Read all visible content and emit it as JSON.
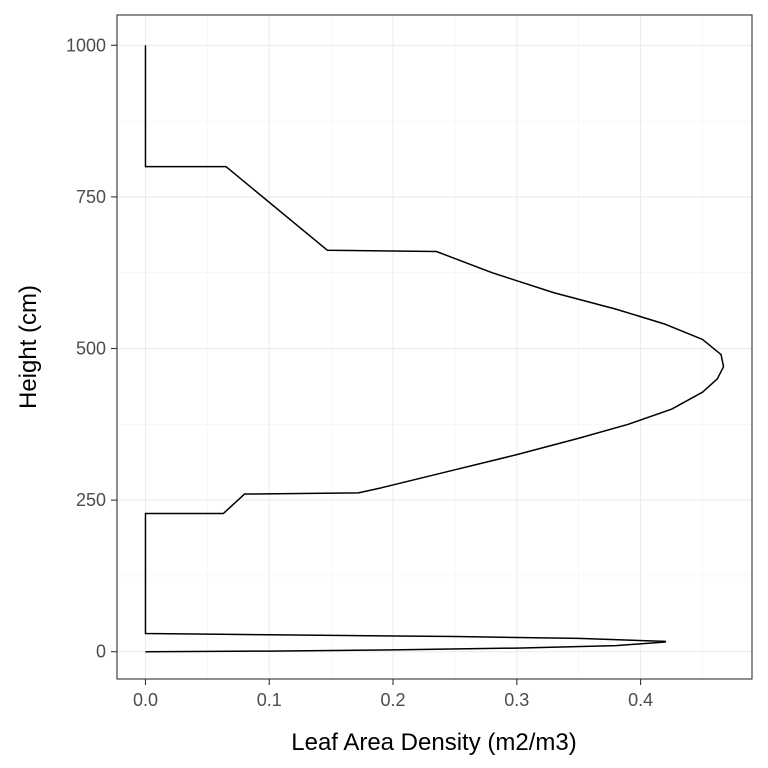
{
  "chart_data": {
    "type": "line",
    "title": "",
    "xlabel": "Leaf Area Density (m2/m3)",
    "ylabel": "Height (cm)",
    "xlim": [
      -0.023,
      0.49
    ],
    "ylim": [
      -45,
      1050
    ],
    "x_ticks": [
      0.0,
      0.1,
      0.2,
      0.3,
      0.4
    ],
    "x_tick_labels": [
      "0.0",
      "0.1",
      "0.2",
      "0.3",
      "0.4"
    ],
    "y_ticks": [
      0,
      250,
      500,
      750,
      1000
    ],
    "y_tick_labels": [
      "0",
      "250",
      "500",
      "750",
      "1000"
    ],
    "grid": true,
    "legend": "none",
    "series_color": "#000000",
    "series": [
      {
        "points": [
          [
            0.0,
            0
          ],
          [
            0.1,
            1
          ],
          [
            0.2,
            3
          ],
          [
            0.3,
            6
          ],
          [
            0.38,
            10
          ],
          [
            0.42,
            16
          ],
          [
            0.42,
            17
          ],
          [
            0.35,
            22
          ],
          [
            0.25,
            25
          ],
          [
            0.1,
            28
          ],
          [
            0.0,
            30
          ],
          [
            0.0,
            228
          ],
          [
            0.063,
            228
          ],
          [
            0.08,
            260
          ],
          [
            0.172,
            262
          ],
          [
            0.19,
            270
          ],
          [
            0.24,
            295
          ],
          [
            0.3,
            325
          ],
          [
            0.35,
            352
          ],
          [
            0.39,
            375
          ],
          [
            0.425,
            400
          ],
          [
            0.45,
            428
          ],
          [
            0.462,
            450
          ],
          [
            0.467,
            470
          ],
          [
            0.465,
            490
          ],
          [
            0.45,
            515
          ],
          [
            0.42,
            540
          ],
          [
            0.38,
            565
          ],
          [
            0.33,
            592
          ],
          [
            0.28,
            625
          ],
          [
            0.235,
            660
          ],
          [
            0.147,
            662
          ],
          [
            0.065,
            800
          ],
          [
            0.0,
            800
          ],
          [
            0.0,
            1000
          ]
        ]
      }
    ]
  }
}
